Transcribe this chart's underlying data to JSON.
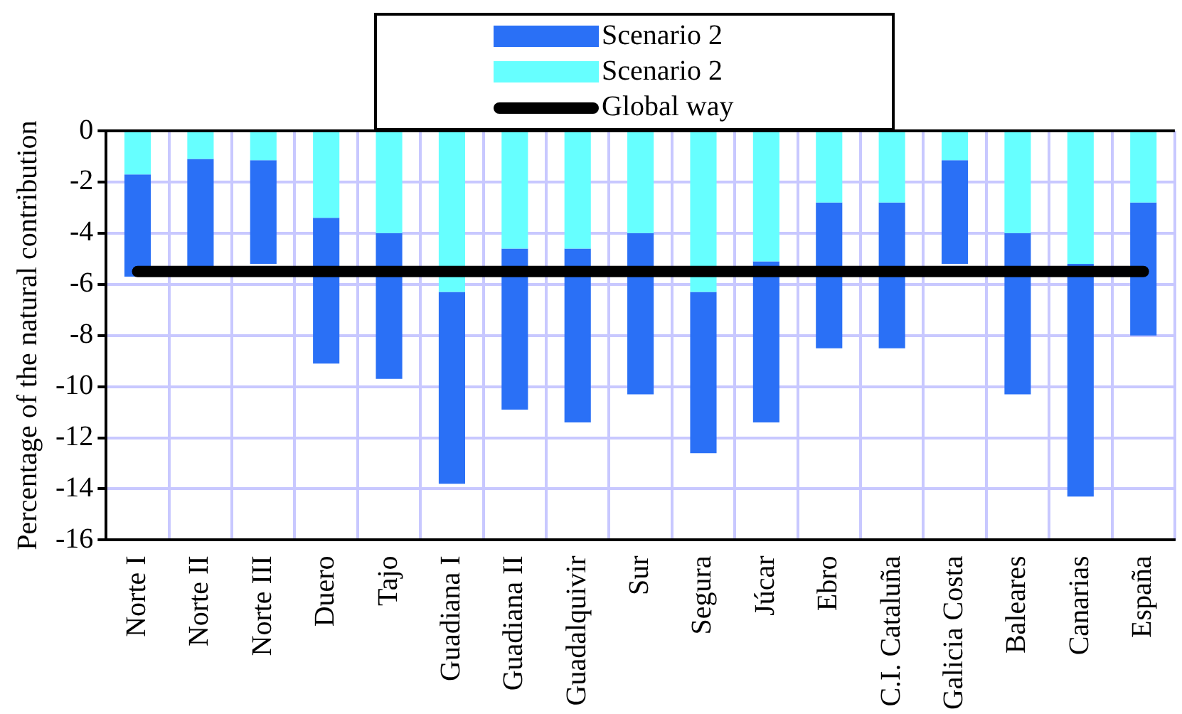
{
  "chart_data": {
    "type": "bar",
    "stacked": true,
    "ylabel": "Percentage of the natural contribution",
    "categories": [
      "Norte I",
      "Norte II",
      "Norte III",
      "Duero",
      "Tajo",
      "Guadiana I",
      "Guadiana II",
      "Guadalquivir",
      "Sur",
      "Segura",
      "Júcar",
      "Ebro",
      "C.I. Cataluña",
      "Galicia Costa",
      "Baleares",
      "Canarias",
      "España"
    ],
    "series": [
      {
        "name": "Scenario 2",
        "color": "#66ffff",
        "values": [
          -1.7,
          -1.1,
          -1.15,
          -3.4,
          -4.0,
          -6.3,
          -4.6,
          -4.6,
          -4.0,
          -6.3,
          -5.1,
          -2.8,
          -2.8,
          -1.15,
          -4.0,
          -5.2,
          -2.8
        ]
      },
      {
        "name": "Scenario 2",
        "color": "#2a70f6",
        "values": [
          -4.0,
          -4.2,
          -4.05,
          -5.7,
          -5.7,
          -7.5,
          -6.3,
          -6.8,
          -6.3,
          -6.3,
          -6.3,
          -5.7,
          -5.7,
          -4.05,
          -6.3,
          -9.1,
          -5.2
        ]
      },
      {
        "name": "Global way",
        "type": "line",
        "color": "#000000",
        "values": [
          -5.5,
          -5.5,
          -5.5,
          -5.5,
          -5.5,
          -5.5,
          -5.5,
          -5.5,
          -5.5,
          -5.5,
          -5.5,
          -5.5,
          -5.5,
          -5.5,
          -5.5,
          -5.5,
          -5.5
        ]
      }
    ],
    "ylim": [
      -16,
      0
    ],
    "yticks": [
      0,
      -2,
      -4,
      -6,
      -8,
      -10,
      -12,
      -14,
      -16
    ],
    "grid": true,
    "legend": "top",
    "marker": "none"
  }
}
